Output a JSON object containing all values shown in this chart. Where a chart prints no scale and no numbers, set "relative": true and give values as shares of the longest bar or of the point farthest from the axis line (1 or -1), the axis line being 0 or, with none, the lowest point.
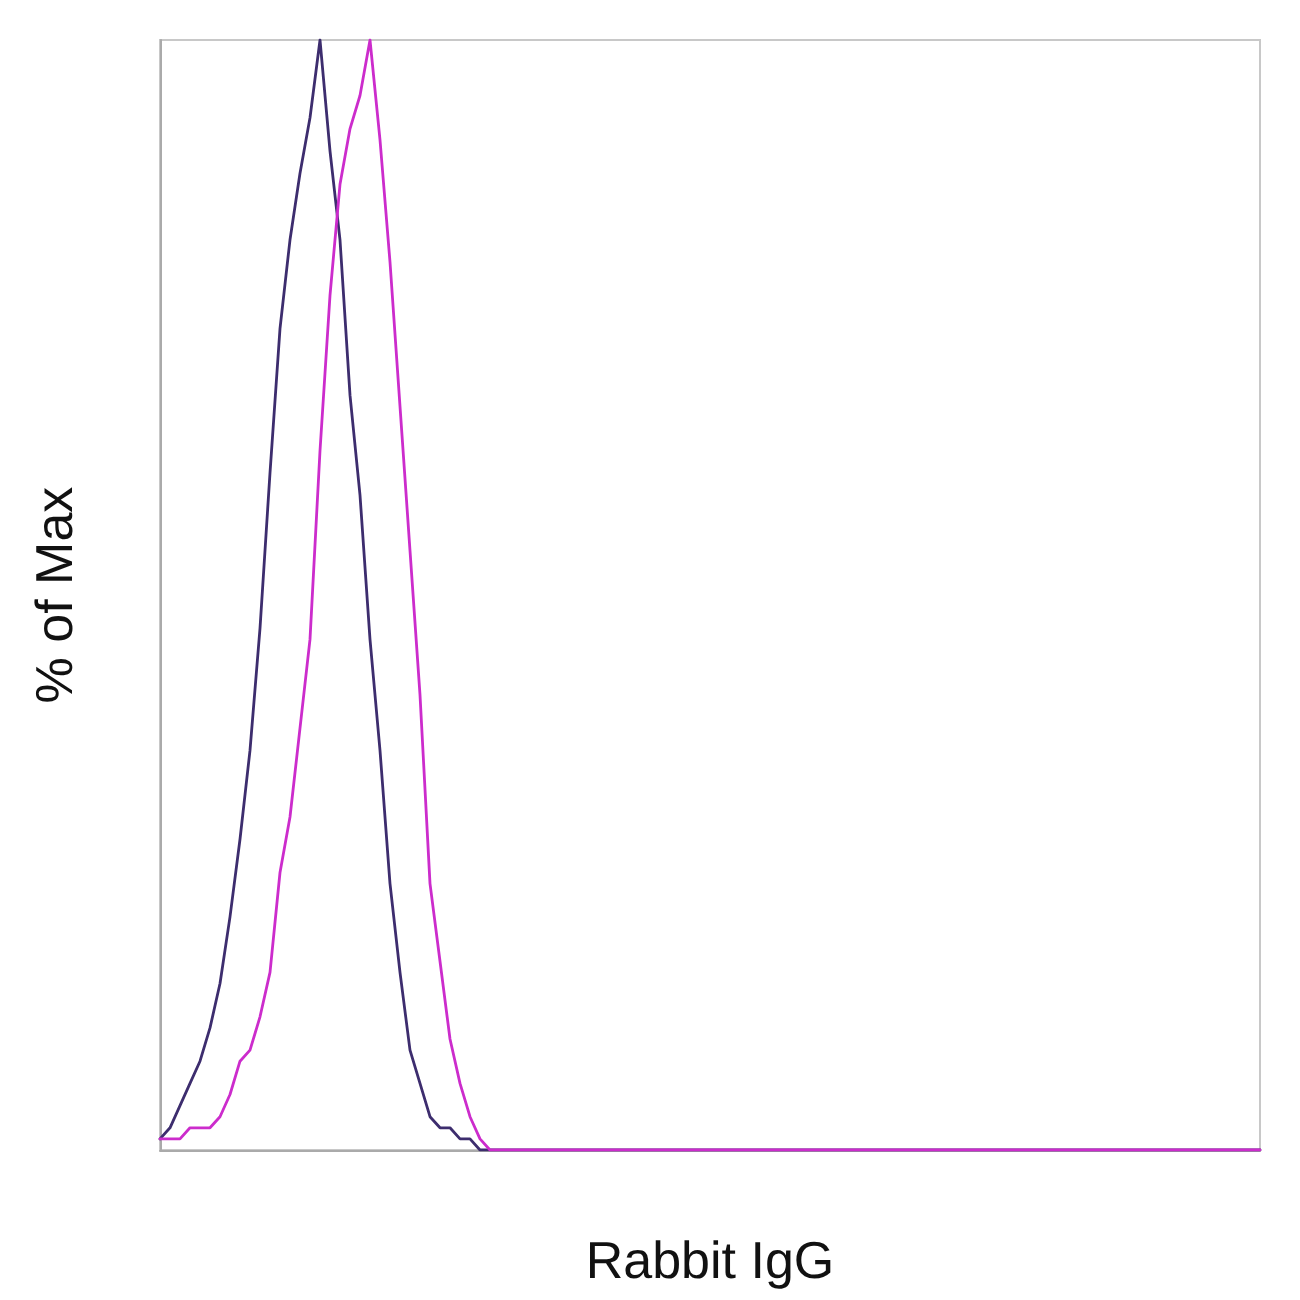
{
  "chart_data": {
    "type": "line",
    "relative": true,
    "xlabel": "Rabbit IgG",
    "ylabel": "% of Max",
    "grid": false,
    "line_style": "solid",
    "categories": [
      null,
      null,
      null,
      null,
      null,
      null,
      null,
      null,
      null,
      null,
      null,
      null,
      null,
      null,
      null,
      null,
      null,
      null,
      null,
      null,
      null,
      null,
      null,
      null,
      null,
      null,
      null,
      null,
      null,
      null,
      null,
      null,
      null,
      null,
      null,
      null,
      null,
      null,
      null,
      null,
      null,
      null,
      null,
      null,
      null,
      null,
      null,
      null,
      null,
      null,
      null,
      null,
      null,
      null,
      null,
      null,
      null,
      null,
      null,
      null,
      null,
      null,
      null,
      null,
      null,
      null,
      null,
      null,
      null,
      null,
      null,
      null,
      null,
      null,
      null,
      null,
      null,
      null,
      null,
      null,
      null,
      null,
      null,
      null,
      null,
      null,
      null,
      null,
      null,
      null,
      null,
      null,
      null,
      null,
      null,
      null,
      null,
      null,
      null,
      null,
      null,
      null,
      null,
      null,
      null,
      null,
      null,
      null,
      null,
      null,
      null
    ],
    "series": [
      {
        "color": "#3d2d6e",
        "values": [
          0.01,
          0.02,
          0.04,
          0.06,
          0.08,
          0.11,
          0.15,
          0.21,
          0.28,
          0.36,
          0.47,
          0.61,
          0.74,
          0.82,
          0.88,
          0.93,
          1,
          0.9,
          0.82,
          0.68,
          0.59,
          0.46,
          0.36,
          0.24,
          0.16,
          0.09,
          0.06,
          0.03,
          0.02,
          0.02,
          0.01,
          0.01,
          0,
          0,
          0,
          0,
          0,
          0,
          0,
          0,
          0,
          0,
          0,
          0,
          0,
          0,
          0,
          0,
          0,
          0,
          0,
          0,
          0,
          0,
          0,
          0,
          0,
          0,
          0,
          0,
          0,
          0,
          0,
          0,
          0,
          0,
          0,
          0,
          0,
          0,
          0,
          0,
          0,
          0,
          0,
          0,
          0,
          0,
          0,
          0,
          0,
          0,
          0,
          0,
          0,
          0,
          0,
          0,
          0,
          0,
          0,
          0,
          0,
          0,
          0,
          0,
          0,
          0,
          0,
          0,
          0,
          0,
          0,
          0,
          0,
          0,
          0,
          0,
          0,
          0,
          0
        ]
      },
      {
        "color": "#cc2ccc",
        "values": [
          0.01,
          0.01,
          0.01,
          0.02,
          0.02,
          0.02,
          0.03,
          0.05,
          0.08,
          0.09,
          0.12,
          0.16,
          0.25,
          0.3,
          0.38,
          0.46,
          0.63,
          0.77,
          0.87,
          0.92,
          0.95,
          1,
          0.91,
          0.8,
          0.67,
          0.54,
          0.41,
          0.24,
          0.17,
          0.1,
          0.06,
          0.03,
          0.01,
          0,
          0,
          0,
          0,
          0,
          0,
          0,
          0,
          0,
          0,
          0,
          0,
          0,
          0,
          0,
          0,
          0,
          0,
          0,
          0,
          0,
          0,
          0,
          0,
          0,
          0,
          0,
          0,
          0,
          0,
          0,
          0,
          0,
          0,
          0,
          0,
          0,
          0,
          0,
          0,
          0,
          0,
          0,
          0,
          0,
          0,
          0,
          0,
          0,
          0,
          0,
          0,
          0,
          0,
          0,
          0,
          0,
          0,
          0,
          0,
          0,
          0,
          0,
          0,
          0,
          0,
          0,
          0,
          0,
          0,
          0,
          0,
          0,
          0,
          0,
          0,
          0,
          0
        ]
      }
    ]
  }
}
